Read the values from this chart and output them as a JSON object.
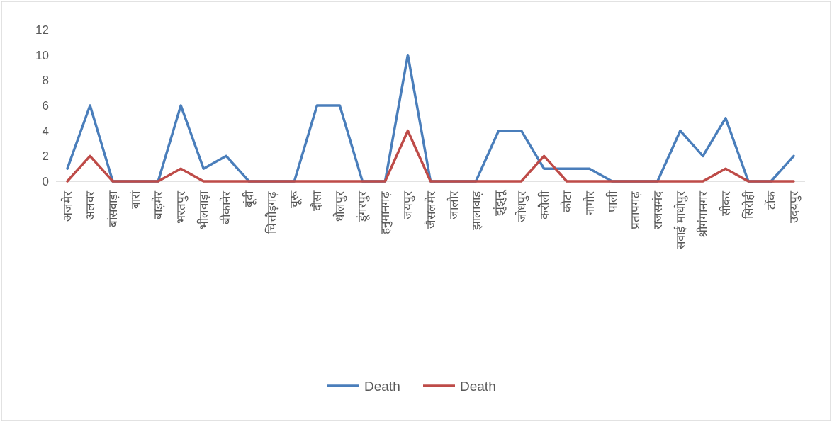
{
  "chart_data": {
    "type": "line",
    "categories": [
      "अजमेर",
      "अलवर",
      "बांसवाड़ा",
      "बारां",
      "बाड़मेर",
      "भरतपुर",
      "भीलवाड़ा",
      "बीकानेर",
      "बूंदी",
      "चित्तौड़गढ़",
      "चूरू",
      "दौसा",
      "धौलपुर",
      "डूंगरपुर",
      "हनुमानगढ़",
      "जयपुर",
      "जैसलमेर",
      "जालौर",
      "झालावाड़",
      "झुंझुनू",
      "जोधपुर",
      "करौली",
      "कोटा",
      "नागौर",
      "पाली",
      "प्रतापगढ़",
      "राजसमंद",
      "सवाई माधोपुर",
      "श्रीगंगानगर",
      "सीकर",
      "सिरोही",
      "टोंक",
      "उदयपुर"
    ],
    "series": [
      {
        "name": "Death",
        "color": "#4a7ebb",
        "values": [
          1,
          6,
          0,
          0,
          0,
          6,
          1,
          2,
          0,
          0,
          0,
          6,
          6,
          0,
          0,
          10,
          0,
          0,
          0,
          4,
          4,
          1,
          1,
          1,
          0,
          0,
          0,
          4,
          2,
          5,
          0,
          0,
          2
        ]
      },
      {
        "name": "Death",
        "color": "#be4b48",
        "values": [
          0,
          2,
          0,
          0,
          0,
          1,
          0,
          0,
          0,
          0,
          0,
          0,
          0,
          0,
          0,
          4,
          0,
          0,
          0,
          0,
          0,
          2,
          0,
          0,
          0,
          0,
          0,
          0,
          0,
          1,
          0,
          0,
          0
        ]
      }
    ],
    "ylim": [
      0,
      12
    ],
    "yticks": [
      0,
      2,
      4,
      6,
      8,
      10,
      12
    ],
    "grid": false,
    "legend": "bottom",
    "marker": "none",
    "line_style": "solid"
  }
}
